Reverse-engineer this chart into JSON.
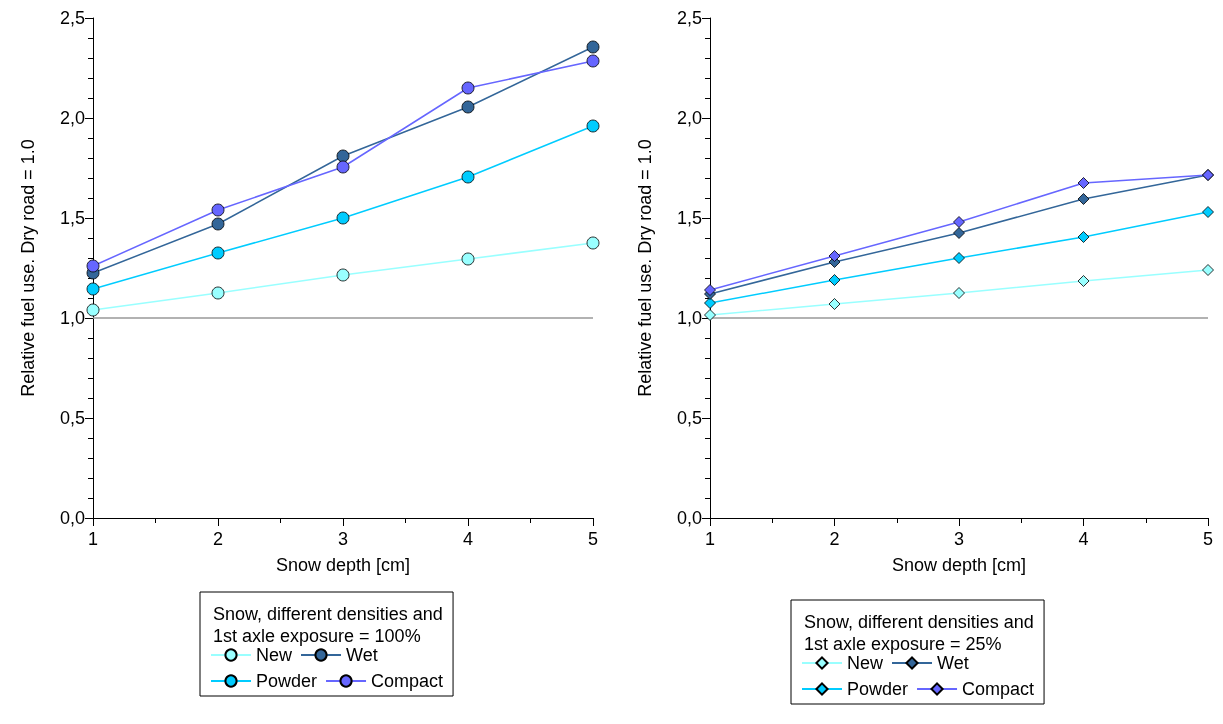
{
  "chart_data": [
    {
      "type": "line",
      "xlabel": "Snow depth [cm]",
      "ylabel": "Relative fuel use. Dry road = 1.0",
      "legend_title": "Snow, different densities and 1st axle exposure = 100%",
      "x": [
        1,
        2,
        3,
        4,
        5
      ],
      "xlim": [
        1,
        5
      ],
      "xticks": [
        1,
        2,
        3,
        4,
        5
      ],
      "ylim": [
        0,
        2.5
      ],
      "yticks": [
        {
          "value": 0,
          "label": "0,0"
        },
        {
          "value": 0.5,
          "label": "0,5"
        },
        {
          "value": 1,
          "label": "1,0"
        },
        {
          "value": 1.5,
          "label": "1,5"
        },
        {
          "value": 2,
          "label": "2,0"
        },
        {
          "value": 2.5,
          "label": "2,5"
        }
      ],
      "marker": "circle",
      "legend": "bottom",
      "grid": false,
      "ref_lines": [
        {
          "axis": "y",
          "value": 1,
          "color": "#999999"
        }
      ],
      "series": [
        {
          "name": "New",
          "color": "#99ffff",
          "values": [
            1.04,
            1.125,
            1.215,
            1.295,
            1.375
          ]
        },
        {
          "name": "Powder",
          "color": "#00ccff",
          "values": [
            1.145,
            1.325,
            1.5,
            1.705,
            1.96
          ]
        },
        {
          "name": "Wet",
          "color": "#336699",
          "values": [
            1.225,
            1.47,
            1.81,
            2.055,
            2.355
          ]
        },
        {
          "name": "Compact",
          "color": "#6666ff",
          "values": [
            1.26,
            1.54,
            1.755,
            2.15,
            2.285
          ]
        }
      ]
    },
    {
      "type": "line",
      "xlabel": "Snow depth [cm]",
      "ylabel": "Relative fuel use. Dry road = 1.0",
      "legend_title": "Snow, different densities and 1st axle exposure = 25%",
      "x": [
        1,
        2,
        3,
        4,
        5
      ],
      "xlim": [
        1,
        5
      ],
      "xticks": [
        1,
        2,
        3,
        4,
        5
      ],
      "ylim": [
        0,
        2.5
      ],
      "yticks": [
        {
          "value": 0,
          "label": "0,0"
        },
        {
          "value": 0.5,
          "label": "0,5"
        },
        {
          "value": 1,
          "label": "1,0"
        },
        {
          "value": 1.5,
          "label": "1,5"
        },
        {
          "value": 2,
          "label": "2,0"
        },
        {
          "value": 2.5,
          "label": "2,5"
        }
      ],
      "marker": "diamond",
      "legend": "bottom",
      "grid": false,
      "ref_lines": [
        {
          "axis": "y",
          "value": 1,
          "color": "#999999"
        }
      ],
      "series": [
        {
          "name": "New",
          "color": "#99ffff",
          "values": [
            1.015,
            1.07,
            1.125,
            1.185,
            1.24
          ]
        },
        {
          "name": "Powder",
          "color": "#00ccff",
          "values": [
            1.075,
            1.19,
            1.3,
            1.405,
            1.53
          ]
        },
        {
          "name": "Wet",
          "color": "#336699",
          "values": [
            1.12,
            1.28,
            1.425,
            1.595,
            1.715
          ]
        },
        {
          "name": "Compact",
          "color": "#6666ff",
          "values": [
            1.14,
            1.31,
            1.48,
            1.675,
            1.715
          ]
        }
      ]
    }
  ]
}
